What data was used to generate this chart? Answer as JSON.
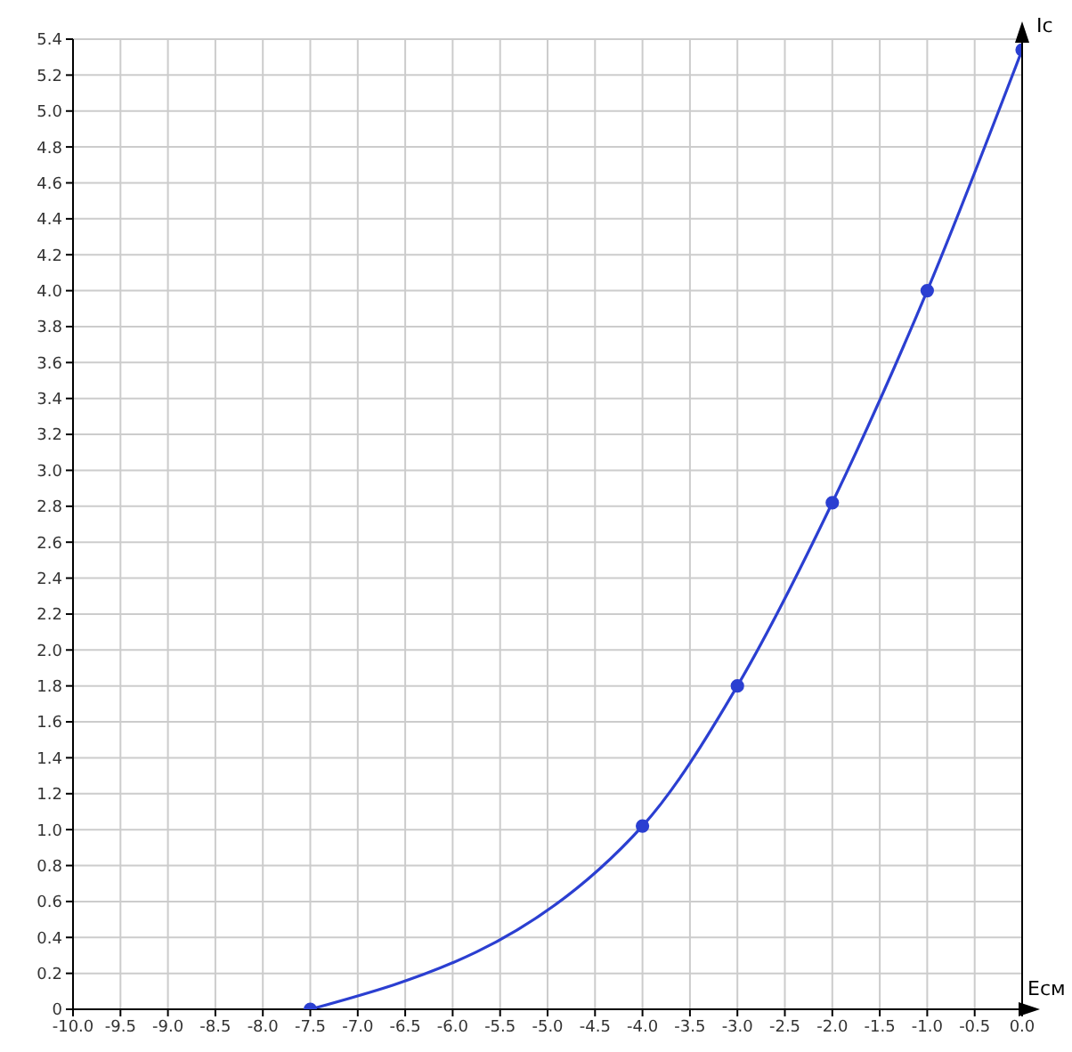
{
  "chart_data": {
    "type": "line",
    "xlabel": "Eсм",
    "ylabel": "Ic",
    "x": [
      -7.5,
      -4,
      -3,
      -2,
      -1,
      0
    ],
    "series": [
      {
        "color": "#2b3fd1",
        "values": [
          0,
          1.02,
          1.8,
          2.82,
          4.0,
          5.34
        ]
      }
    ],
    "xlim": [
      -10,
      0
    ],
    "xticks": [
      {
        "value": -10,
        "label": "-10.0"
      },
      -9.5,
      {
        "value": -9,
        "label": "-9.0"
      },
      -8.5,
      {
        "value": -8,
        "label": "-8.0"
      },
      -7.5,
      {
        "value": -7,
        "label": "-7.0"
      },
      -6.5,
      {
        "value": -6,
        "label": "-6.0"
      },
      -5.5,
      {
        "value": -5,
        "label": "-5.0"
      },
      -4.5,
      {
        "value": -4,
        "label": "-4.0"
      },
      -3.5,
      {
        "value": -3,
        "label": "-3.0"
      },
      -2.5,
      {
        "value": -2,
        "label": "-2.0"
      },
      -1.5,
      {
        "value": -1,
        "label": "-1.0"
      },
      -0.5,
      {
        "value": 0,
        "label": "0.0"
      }
    ],
    "ylim": [
      0,
      5.4
    ],
    "yticks": [
      0,
      0.2,
      0.4,
      0.6,
      0.8,
      {
        "value": 1,
        "label": "1.0"
      },
      1.2,
      1.4,
      1.6,
      1.8,
      {
        "value": 2,
        "label": "2.0"
      },
      2.2,
      2.4,
      2.6,
      2.8,
      {
        "value": 3,
        "label": "3.0"
      },
      3.2,
      3.4,
      3.6,
      3.8,
      {
        "value": 4,
        "label": "4.0"
      },
      4.2,
      4.4,
      4.6,
      4.8,
      {
        "value": 5,
        "label": "5.0"
      },
      5.2,
      5.4
    ],
    "grid": true,
    "marker": "circle",
    "line_style": "solid",
    "legend": false
  }
}
